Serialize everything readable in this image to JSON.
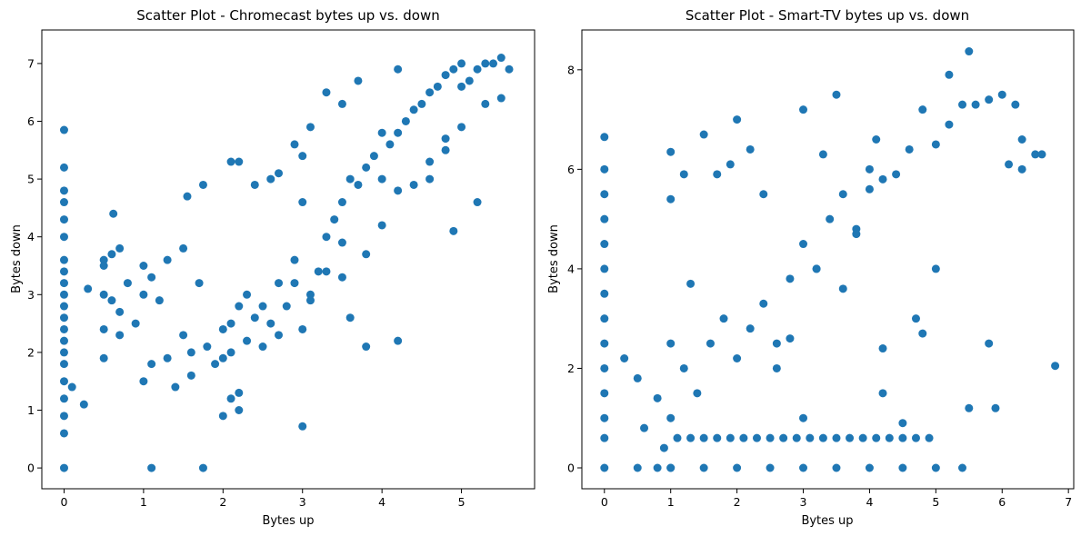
{
  "colors": {
    "points": "#1f77b4",
    "axes": "#000000",
    "background": "#ffffff"
  },
  "chart_data": [
    {
      "type": "scatter",
      "title": "Scatter Plot - Chromecast bytes up vs. down",
      "xlabel": "Bytes up",
      "ylabel": "Bytes down",
      "xlim": [
        -0.28,
        5.92
      ],
      "ylim": [
        -0.36,
        7.58
      ],
      "xticks": [
        0,
        1,
        2,
        3,
        4,
        5
      ],
      "yticks": [
        0,
        1,
        2,
        3,
        4,
        5,
        6,
        7
      ],
      "grid": false,
      "series": [
        {
          "color": "#1f77b4",
          "x": [
            0,
            0,
            0,
            0,
            0,
            0,
            0,
            0,
            0,
            0,
            0,
            0,
            0,
            0,
            0,
            0,
            0,
            0,
            0,
            0,
            0,
            0.1,
            0.25,
            0.3,
            0.5,
            0.5,
            0.5,
            0.5,
            0.6,
            0.6,
            0.7,
            0.7,
            0.8,
            0.9,
            1.0,
            1.0,
            1.1,
            1.1,
            1.2,
            1.3,
            1.3,
            1.4,
            1.5,
            1.5,
            1.6,
            1.7,
            1.8,
            1.9,
            2.0,
            2.0,
            2.1,
            2.2,
            2.2,
            2.3,
            2.4,
            2.5,
            2.6,
            2.7,
            2.8,
            2.9,
            3.0,
            3.0,
            3.1,
            3.2,
            3.3,
            3.4,
            3.5,
            3.6,
            3.7,
            3.8,
            3.9,
            4.0,
            4.0,
            4.1,
            4.2,
            4.3,
            4.4,
            4.5,
            4.6,
            4.7,
            4.8,
            4.9,
            5.0,
            5.0,
            5.1,
            5.2,
            5.3,
            5.4,
            5.5,
            5.6,
            4.6,
            4.8,
            5.0,
            5.3,
            5.5,
            4.9,
            5.2,
            3.5,
            3.6,
            3.8,
            4.2,
            2.1,
            2.2,
            2.4,
            2.6,
            2.7,
            2.9,
            3.0,
            3.1,
            3.3,
            3.5,
            3.7,
            4.2,
            1.1,
            1.75,
            3.0,
            1.55,
            1.75,
            2.1,
            2.2,
            0.62,
            0.5,
            0.7,
            1.0,
            1.6,
            2.0,
            2.1,
            2.3,
            2.5,
            2.7,
            2.9,
            3.1,
            3.3,
            3.5,
            3.8,
            4.0,
            4.2,
            4.4,
            4.6,
            4.8
          ],
          "y": [
            0,
            0.6,
            0.9,
            1.2,
            1.5,
            1.8,
            2.0,
            2.2,
            2.4,
            2.6,
            2.8,
            3.0,
            3.2,
            3.4,
            3.6,
            4.0,
            4.3,
            4.6,
            4.8,
            5.2,
            5.85,
            1.4,
            1.1,
            3.1,
            1.9,
            2.4,
            3.0,
            3.6,
            2.9,
            3.7,
            2.7,
            3.8,
            3.2,
            2.5,
            1.5,
            3.5,
            1.8,
            3.3,
            2.9,
            1.9,
            3.6,
            1.4,
            2.3,
            3.8,
            1.6,
            3.2,
            2.1,
            1.8,
            0.9,
            2.4,
            2.0,
            1.3,
            2.8,
            2.2,
            2.6,
            2.1,
            2.5,
            2.3,
            2.8,
            3.2,
            2.4,
            4.6,
            2.9,
            3.4,
            4.0,
            4.3,
            4.6,
            5.0,
            4.9,
            5.2,
            5.4,
            5.0,
            5.8,
            5.6,
            5.8,
            6.0,
            6.2,
            6.3,
            6.5,
            6.6,
            6.8,
            6.9,
            6.6,
            7.0,
            6.7,
            6.9,
            7.0,
            7.0,
            7.1,
            6.9,
            5.0,
            5.5,
            5.9,
            6.3,
            6.4,
            4.1,
            4.6,
            3.3,
            2.6,
            2.1,
            2.2,
            5.3,
            5.3,
            4.9,
            5.0,
            5.1,
            5.6,
            5.4,
            5.9,
            6.5,
            6.3,
            6.7,
            6.9,
            0,
            0,
            0.72,
            4.7,
            4.9,
            1.2,
            1.0,
            4.4,
            3.5,
            2.3,
            3.0,
            2.0,
            1.9,
            2.5,
            3.0,
            2.8,
            3.2,
            3.6,
            3.0,
            3.4,
            3.9,
            3.7,
            4.2,
            4.8,
            4.9,
            5.3,
            5.7
          ]
        }
      ]
    },
    {
      "type": "scatter",
      "title": "Scatter Plot - Smart-TV bytes up vs. down",
      "xlabel": "Bytes up",
      "ylabel": "Bytes down",
      "xlim": [
        -0.34,
        7.08
      ],
      "ylim": [
        -0.42,
        8.8
      ],
      "xticks": [
        0,
        1,
        2,
        3,
        4,
        5,
        6,
        7
      ],
      "yticks": [
        0,
        2,
        4,
        6,
        8
      ],
      "grid": false,
      "series": [
        {
          "color": "#1f77b4",
          "x": [
            0,
            0,
            0,
            0,
            0,
            0,
            0,
            0,
            0,
            0,
            0,
            0,
            0,
            0,
            0.5,
            0.8,
            1.0,
            1.0,
            1.5,
            2.0,
            2.5,
            3.0,
            3.5,
            4.0,
            4.5,
            5.0,
            5.4,
            0.3,
            0.5,
            0.6,
            0.8,
            0.9,
            1.0,
            1.0,
            1.0,
            1.2,
            1.3,
            1.5,
            1.7,
            1.9,
            2.0,
            2.2,
            2.4,
            2.6,
            2.8,
            3.0,
            3.0,
            3.2,
            3.3,
            3.5,
            3.6,
            3.8,
            4.0,
            4.1,
            4.2,
            4.4,
            4.6,
            4.8,
            5.0,
            5.2,
            5.4,
            5.6,
            5.8,
            6.0,
            6.2,
            6.3,
            6.5,
            6.8,
            5.5,
            5.2,
            5.8,
            4.7,
            5.0,
            5.5,
            5.9,
            6.1,
            6.3,
            6.6,
            4.2,
            4.5,
            4.8,
            1.0,
            1.2,
            1.4,
            1.6,
            1.8,
            2.0,
            2.2,
            2.4,
            2.6,
            2.8,
            3.0,
            3.2,
            3.4,
            3.6,
            3.8,
            4.0,
            4.2,
            1.1,
            1.3,
            1.5,
            1.7,
            1.9,
            2.1,
            2.3,
            2.5,
            2.7,
            2.9,
            3.1,
            3.3,
            3.5,
            3.7,
            3.9,
            4.1,
            4.3,
            4.5,
            4.7,
            4.9
          ],
          "y": [
            0,
            0.6,
            1.0,
            1.5,
            2.0,
            2.5,
            3.0,
            3.5,
            4.0,
            4.5,
            5.0,
            5.5,
            6.0,
            6.65,
            0,
            0,
            0,
            0,
            0,
            0,
            0,
            0,
            0,
            0,
            0,
            0,
            0,
            2.2,
            1.8,
            0.8,
            1.4,
            0.4,
            2.5,
            5.4,
            6.35,
            5.9,
            3.7,
            6.7,
            5.9,
            6.1,
            7.0,
            6.4,
            5.5,
            2.0,
            2.6,
            1.0,
            7.2,
            4.0,
            6.3,
            7.5,
            3.6,
            4.7,
            5.6,
            6.6,
            2.4,
            5.9,
            6.4,
            7.2,
            6.5,
            6.9,
            7.3,
            7.3,
            7.4,
            7.5,
            7.3,
            6.6,
            6.3,
            2.05,
            8.37,
            7.9,
            2.5,
            3.0,
            4.0,
            1.2,
            1.2,
            6.1,
            6.0,
            6.3,
            1.5,
            0.9,
            2.7,
            1.0,
            2.0,
            1.5,
            2.5,
            3.0,
            2.2,
            2.8,
            3.3,
            2.5,
            3.8,
            4.5,
            4.0,
            5.0,
            5.5,
            4.8,
            6.0,
            5.8,
            0.6,
            0.6,
            0.6,
            0.6,
            0.6,
            0.6,
            0.6,
            0.6,
            0.6,
            0.6,
            0.6,
            0.6,
            0.6,
            0.6,
            0.6,
            0.6,
            0.6,
            0.6,
            0.6,
            0.6
          ]
        }
      ]
    }
  ]
}
